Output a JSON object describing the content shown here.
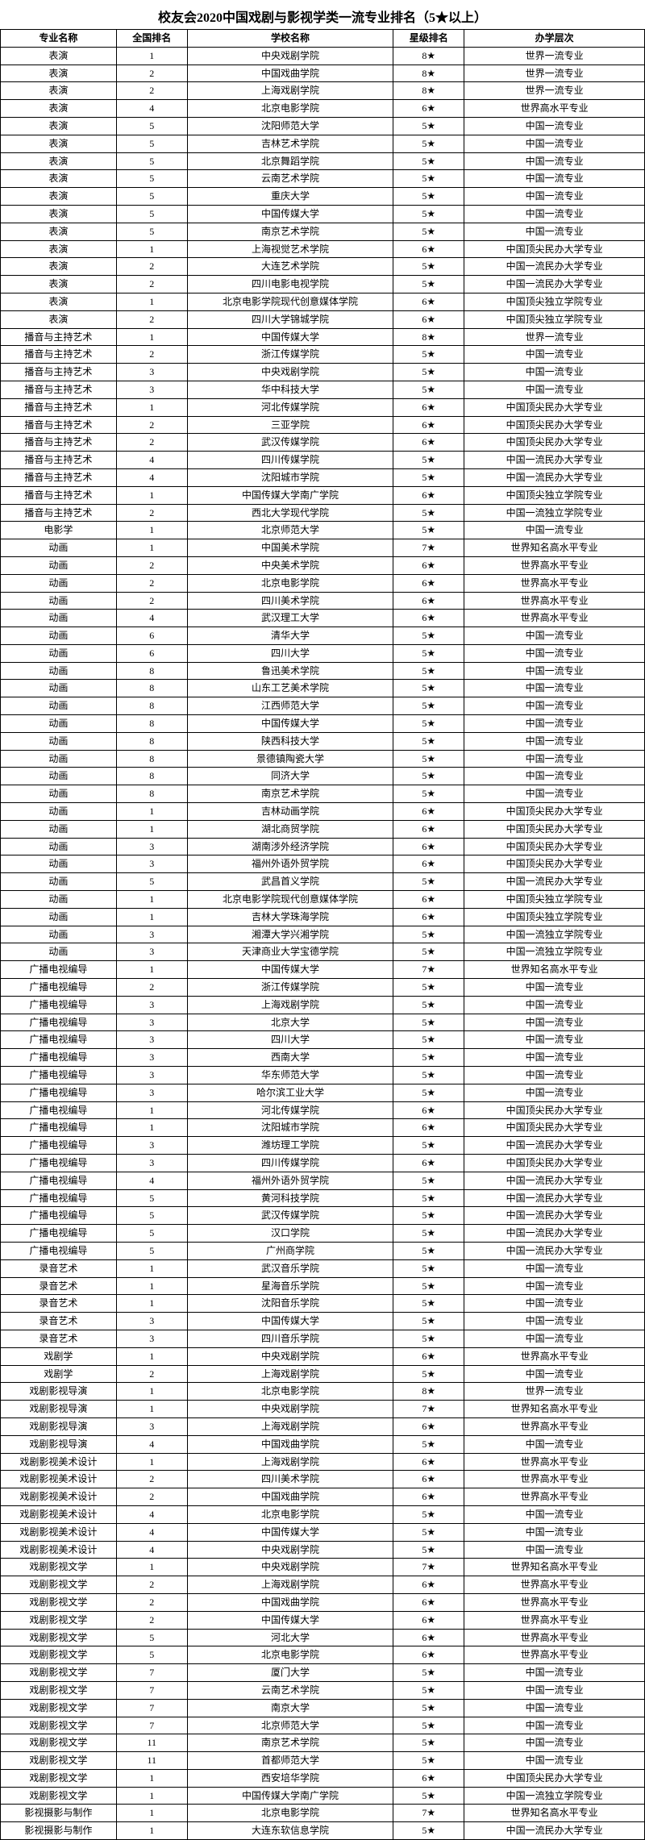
{
  "title": "校友会2020中国戏剧与影视学类一流专业排名（5★以上）",
  "columns": [
    "专业名称",
    "全国排名",
    "学校名称",
    "星级排名",
    "办学层次"
  ],
  "rows": [
    [
      "表演",
      "1",
      "中央戏剧学院",
      "8★",
      "世界一流专业"
    ],
    [
      "表演",
      "2",
      "中国戏曲学院",
      "8★",
      "世界一流专业"
    ],
    [
      "表演",
      "2",
      "上海戏剧学院",
      "8★",
      "世界一流专业"
    ],
    [
      "表演",
      "4",
      "北京电影学院",
      "6★",
      "世界高水平专业"
    ],
    [
      "表演",
      "5",
      "沈阳师范大学",
      "5★",
      "中国一流专业"
    ],
    [
      "表演",
      "5",
      "吉林艺术学院",
      "5★",
      "中国一流专业"
    ],
    [
      "表演",
      "5",
      "北京舞蹈学院",
      "5★",
      "中国一流专业"
    ],
    [
      "表演",
      "5",
      "云南艺术学院",
      "5★",
      "中国一流专业"
    ],
    [
      "表演",
      "5",
      "重庆大学",
      "5★",
      "中国一流专业"
    ],
    [
      "表演",
      "5",
      "中国传媒大学",
      "5★",
      "中国一流专业"
    ],
    [
      "表演",
      "5",
      "南京艺术学院",
      "5★",
      "中国一流专业"
    ],
    [
      "表演",
      "1",
      "上海视觉艺术学院",
      "6★",
      "中国顶尖民办大学专业"
    ],
    [
      "表演",
      "2",
      "大连艺术学院",
      "5★",
      "中国一流民办大学专业"
    ],
    [
      "表演",
      "2",
      "四川电影电视学院",
      "5★",
      "中国一流民办大学专业"
    ],
    [
      "表演",
      "1",
      "北京电影学院现代创意媒体学院",
      "6★",
      "中国顶尖独立学院专业"
    ],
    [
      "表演",
      "2",
      "四川大学锦城学院",
      "6★",
      "中国顶尖独立学院专业"
    ],
    [
      "播音与主持艺术",
      "1",
      "中国传媒大学",
      "8★",
      "世界一流专业"
    ],
    [
      "播音与主持艺术",
      "2",
      "浙江传媒学院",
      "5★",
      "中国一流专业"
    ],
    [
      "播音与主持艺术",
      "3",
      "中央戏剧学院",
      "5★",
      "中国一流专业"
    ],
    [
      "播音与主持艺术",
      "3",
      "华中科技大学",
      "5★",
      "中国一流专业"
    ],
    [
      "播音与主持艺术",
      "1",
      "河北传媒学院",
      "6★",
      "中国顶尖民办大学专业"
    ],
    [
      "播音与主持艺术",
      "2",
      "三亚学院",
      "6★",
      "中国顶尖民办大学专业"
    ],
    [
      "播音与主持艺术",
      "2",
      "武汉传媒学院",
      "6★",
      "中国顶尖民办大学专业"
    ],
    [
      "播音与主持艺术",
      "4",
      "四川传媒学院",
      "5★",
      "中国一流民办大学专业"
    ],
    [
      "播音与主持艺术",
      "4",
      "沈阳城市学院",
      "5★",
      "中国一流民办大学专业"
    ],
    [
      "播音与主持艺术",
      "1",
      "中国传媒大学南广学院",
      "6★",
      "中国顶尖独立学院专业"
    ],
    [
      "播音与主持艺术",
      "2",
      "西北大学现代学院",
      "5★",
      "中国一流独立学院专业"
    ],
    [
      "电影学",
      "1",
      "北京师范大学",
      "5★",
      "中国一流专业"
    ],
    [
      "动画",
      "1",
      "中国美术学院",
      "7★",
      "世界知名高水平专业"
    ],
    [
      "动画",
      "2",
      "中央美术学院",
      "6★",
      "世界高水平专业"
    ],
    [
      "动画",
      "2",
      "北京电影学院",
      "6★",
      "世界高水平专业"
    ],
    [
      "动画",
      "2",
      "四川美术学院",
      "6★",
      "世界高水平专业"
    ],
    [
      "动画",
      "4",
      "武汉理工大学",
      "6★",
      "世界高水平专业"
    ],
    [
      "动画",
      "6",
      "清华大学",
      "5★",
      "中国一流专业"
    ],
    [
      "动画",
      "6",
      "四川大学",
      "5★",
      "中国一流专业"
    ],
    [
      "动画",
      "8",
      "鲁迅美术学院",
      "5★",
      "中国一流专业"
    ],
    [
      "动画",
      "8",
      "山东工艺美术学院",
      "5★",
      "中国一流专业"
    ],
    [
      "动画",
      "8",
      "江西师范大学",
      "5★",
      "中国一流专业"
    ],
    [
      "动画",
      "8",
      "中国传媒大学",
      "5★",
      "中国一流专业"
    ],
    [
      "动画",
      "8",
      "陕西科技大学",
      "5★",
      "中国一流专业"
    ],
    [
      "动画",
      "8",
      "景德镇陶瓷大学",
      "5★",
      "中国一流专业"
    ],
    [
      "动画",
      "8",
      "同济大学",
      "5★",
      "中国一流专业"
    ],
    [
      "动画",
      "8",
      "南京艺术学院",
      "5★",
      "中国一流专业"
    ],
    [
      "动画",
      "1",
      "吉林动画学院",
      "6★",
      "中国顶尖民办大学专业"
    ],
    [
      "动画",
      "1",
      "湖北商贸学院",
      "6★",
      "中国顶尖民办大学专业"
    ],
    [
      "动画",
      "3",
      "湖南涉外经济学院",
      "6★",
      "中国顶尖民办大学专业"
    ],
    [
      "动画",
      "3",
      "福州外语外贸学院",
      "6★",
      "中国顶尖民办大学专业"
    ],
    [
      "动画",
      "5",
      "武昌首义学院",
      "5★",
      "中国一流民办大学专业"
    ],
    [
      "动画",
      "1",
      "北京电影学院现代创意媒体学院",
      "6★",
      "中国顶尖独立学院专业"
    ],
    [
      "动画",
      "1",
      "吉林大学珠海学院",
      "6★",
      "中国顶尖独立学院专业"
    ],
    [
      "动画",
      "3",
      "湘潭大学兴湘学院",
      "5★",
      "中国一流独立学院专业"
    ],
    [
      "动画",
      "3",
      "天津商业大学宝德学院",
      "5★",
      "中国一流独立学院专业"
    ],
    [
      "广播电视编导",
      "1",
      "中国传媒大学",
      "7★",
      "世界知名高水平专业"
    ],
    [
      "广播电视编导",
      "2",
      "浙江传媒学院",
      "5★",
      "中国一流专业"
    ],
    [
      "广播电视编导",
      "3",
      "上海戏剧学院",
      "5★",
      "中国一流专业"
    ],
    [
      "广播电视编导",
      "3",
      "北京大学",
      "5★",
      "中国一流专业"
    ],
    [
      "广播电视编导",
      "3",
      "四川大学",
      "5★",
      "中国一流专业"
    ],
    [
      "广播电视编导",
      "3",
      "西南大学",
      "5★",
      "中国一流专业"
    ],
    [
      "广播电视编导",
      "3",
      "华东师范大学",
      "5★",
      "中国一流专业"
    ],
    [
      "广播电视编导",
      "3",
      "哈尔滨工业大学",
      "5★",
      "中国一流专业"
    ],
    [
      "广播电视编导",
      "1",
      "河北传媒学院",
      "6★",
      "中国顶尖民办大学专业"
    ],
    [
      "广播电视编导",
      "1",
      "沈阳城市学院",
      "6★",
      "中国顶尖民办大学专业"
    ],
    [
      "广播电视编导",
      "3",
      "潍坊理工学院",
      "5★",
      "中国一流民办大学专业"
    ],
    [
      "广播电视编导",
      "3",
      "四川传媒学院",
      "6★",
      "中国顶尖民办大学专业"
    ],
    [
      "广播电视编导",
      "4",
      "福州外语外贸学院",
      "5★",
      "中国一流民办大学专业"
    ],
    [
      "广播电视编导",
      "5",
      "黄河科技学院",
      "5★",
      "中国一流民办大学专业"
    ],
    [
      "广播电视编导",
      "5",
      "武汉传媒学院",
      "5★",
      "中国一流民办大学专业"
    ],
    [
      "广播电视编导",
      "5",
      "汉口学院",
      "5★",
      "中国一流民办大学专业"
    ],
    [
      "广播电视编导",
      "5",
      "广州商学院",
      "5★",
      "中国一流民办大学专业"
    ],
    [
      "录音艺术",
      "1",
      "武汉音乐学院",
      "5★",
      "中国一流专业"
    ],
    [
      "录音艺术",
      "1",
      "星海音乐学院",
      "5★",
      "中国一流专业"
    ],
    [
      "录音艺术",
      "1",
      "沈阳音乐学院",
      "5★",
      "中国一流专业"
    ],
    [
      "录音艺术",
      "3",
      "中国传媒大学",
      "5★",
      "中国一流专业"
    ],
    [
      "录音艺术",
      "3",
      "四川音乐学院",
      "5★",
      "中国一流专业"
    ],
    [
      "戏剧学",
      "1",
      "中央戏剧学院",
      "6★",
      "世界高水平专业"
    ],
    [
      "戏剧学",
      "2",
      "上海戏剧学院",
      "5★",
      "中国一流专业"
    ],
    [
      "戏剧影视导演",
      "1",
      "北京电影学院",
      "8★",
      "世界一流专业"
    ],
    [
      "戏剧影视导演",
      "1",
      "中央戏剧学院",
      "7★",
      "世界知名高水平专业"
    ],
    [
      "戏剧影视导演",
      "3",
      "上海戏剧学院",
      "6★",
      "世界高水平专业"
    ],
    [
      "戏剧影视导演",
      "4",
      "中国戏曲学院",
      "5★",
      "中国一流专业"
    ],
    [
      "戏剧影视美术设计",
      "1",
      "上海戏剧学院",
      "6★",
      "世界高水平专业"
    ],
    [
      "戏剧影视美术设计",
      "2",
      "四川美术学院",
      "6★",
      "世界高水平专业"
    ],
    [
      "戏剧影视美术设计",
      "2",
      "中国戏曲学院",
      "6★",
      "世界高水平专业"
    ],
    [
      "戏剧影视美术设计",
      "4",
      "北京电影学院",
      "5★",
      "中国一流专业"
    ],
    [
      "戏剧影视美术设计",
      "4",
      "中国传媒大学",
      "5★",
      "中国一流专业"
    ],
    [
      "戏剧影视美术设计",
      "4",
      "中央戏剧学院",
      "5★",
      "中国一流专业"
    ],
    [
      "戏剧影视文学",
      "1",
      "中央戏剧学院",
      "7★",
      "世界知名高水平专业"
    ],
    [
      "戏剧影视文学",
      "2",
      "上海戏剧学院",
      "6★",
      "世界高水平专业"
    ],
    [
      "戏剧影视文学",
      "2",
      "中国戏曲学院",
      "6★",
      "世界高水平专业"
    ],
    [
      "戏剧影视文学",
      "2",
      "中国传媒大学",
      "6★",
      "世界高水平专业"
    ],
    [
      "戏剧影视文学",
      "5",
      "河北大学",
      "6★",
      "世界高水平专业"
    ],
    [
      "戏剧影视文学",
      "5",
      "北京电影学院",
      "6★",
      "世界高水平专业"
    ],
    [
      "戏剧影视文学",
      "7",
      "厦门大学",
      "5★",
      "中国一流专业"
    ],
    [
      "戏剧影视文学",
      "7",
      "云南艺术学院",
      "5★",
      "中国一流专业"
    ],
    [
      "戏剧影视文学",
      "7",
      "南京大学",
      "5★",
      "中国一流专业"
    ],
    [
      "戏剧影视文学",
      "7",
      "北京师范大学",
      "5★",
      "中国一流专业"
    ],
    [
      "戏剧影视文学",
      "11",
      "南京艺术学院",
      "5★",
      "中国一流专业"
    ],
    [
      "戏剧影视文学",
      "11",
      "首都师范大学",
      "5★",
      "中国一流专业"
    ],
    [
      "戏剧影视文学",
      "1",
      "西安培华学院",
      "6★",
      "中国顶尖民办大学专业"
    ],
    [
      "戏剧影视文学",
      "1",
      "中国传媒大学南广学院",
      "5★",
      "中国一流独立学院专业"
    ],
    [
      "影视摄影与制作",
      "1",
      "北京电影学院",
      "7★",
      "世界知名高水平专业"
    ],
    [
      "影视摄影与制作",
      "1",
      "大连东软信息学院",
      "5★",
      "中国一流民办大学专业"
    ]
  ]
}
